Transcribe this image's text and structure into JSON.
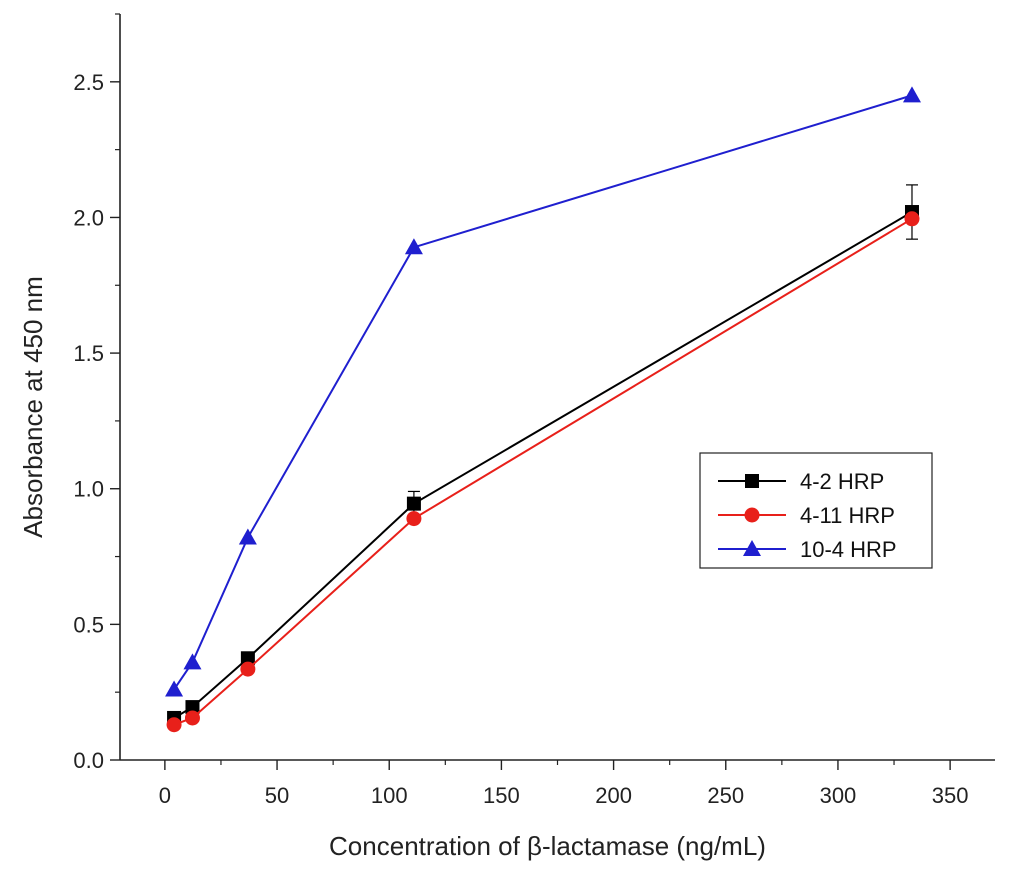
{
  "chart_data": {
    "type": "line",
    "title": "",
    "xlabel": "Concentration of β-lactamase (ng/mL)",
    "ylabel": "Absorbance at 450 nm",
    "xlim": [
      -20,
      370
    ],
    "ylim": [
      0,
      2.75
    ],
    "xticks": [
      0,
      50,
      100,
      150,
      200,
      250,
      300,
      350
    ],
    "yticks": [
      0.0,
      0.5,
      1.0,
      1.5,
      2.0,
      2.5
    ],
    "xtick_labels": [
      "0",
      "50",
      "100",
      "150",
      "200",
      "250",
      "300",
      "350"
    ],
    "ytick_labels": [
      "0.0",
      "0.5",
      "1.0",
      "1.5",
      "2.0",
      "2.5"
    ],
    "grid": false,
    "legend_position": "center-right",
    "series": [
      {
        "name": "4-2 HRP",
        "color": "#000000",
        "marker": "square",
        "x": [
          4.1,
          12.3,
          37,
          111,
          333
        ],
        "y": [
          0.155,
          0.195,
          0.375,
          0.945,
          2.02
        ],
        "yerr": [
          0.01,
          0.01,
          0.015,
          0.045,
          0.1
        ]
      },
      {
        "name": "4-11 HRP",
        "color": "#e8201a",
        "marker": "circle",
        "x": [
          4.1,
          12.3,
          37,
          111,
          333
        ],
        "y": [
          0.13,
          0.155,
          0.335,
          0.89,
          1.995
        ],
        "yerr": [
          0,
          0,
          0,
          0,
          0
        ]
      },
      {
        "name": "10-4 HRP",
        "color": "#1f1fcf",
        "marker": "triangle",
        "x": [
          4.1,
          12.3,
          37,
          111,
          333
        ],
        "y": [
          0.26,
          0.36,
          0.82,
          1.89,
          2.45
        ],
        "yerr": [
          0,
          0,
          0,
          0,
          0
        ]
      }
    ]
  }
}
